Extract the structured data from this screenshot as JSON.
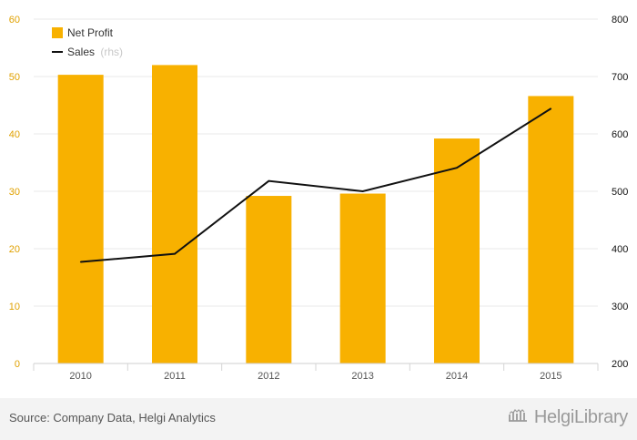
{
  "chart_data": {
    "type": "bar",
    "categories": [
      "2010",
      "2011",
      "2012",
      "2013",
      "2014",
      "2015"
    ],
    "series": [
      {
        "name": "Net Profit",
        "type": "bar",
        "axis": "left",
        "values": [
          50.3,
          52.0,
          29.2,
          29.6,
          39.2,
          46.6
        ]
      },
      {
        "name": "Sales",
        "type": "line",
        "axis": "right",
        "values": [
          377,
          391,
          518,
          500,
          541,
          644
        ]
      }
    ],
    "ylim_left": [
      0,
      60
    ],
    "yticks_left": [
      "0",
      "10",
      "20",
      "30",
      "40",
      "50",
      "60"
    ],
    "ylim_right": [
      200,
      800
    ],
    "yticks_right": [
      "200",
      "300",
      "400",
      "500",
      "600",
      "700",
      "800"
    ],
    "legend": {
      "position": "top-left",
      "items": [
        {
          "label": "Net Profit"
        },
        {
          "label": "Sales",
          "suffix": "(rhs)"
        }
      ]
    },
    "grid": true,
    "colors": {
      "bar": "#f8b100",
      "line": "#111111",
      "left_axis": "#e0a100",
      "right_axis": "#111111",
      "grid": "#e8e8e8"
    }
  },
  "footer": {
    "source": "Source: Company Data, Helgi Analytics",
    "brand_name": "HelgiLibrary",
    "brand_icon": "library-icon"
  }
}
